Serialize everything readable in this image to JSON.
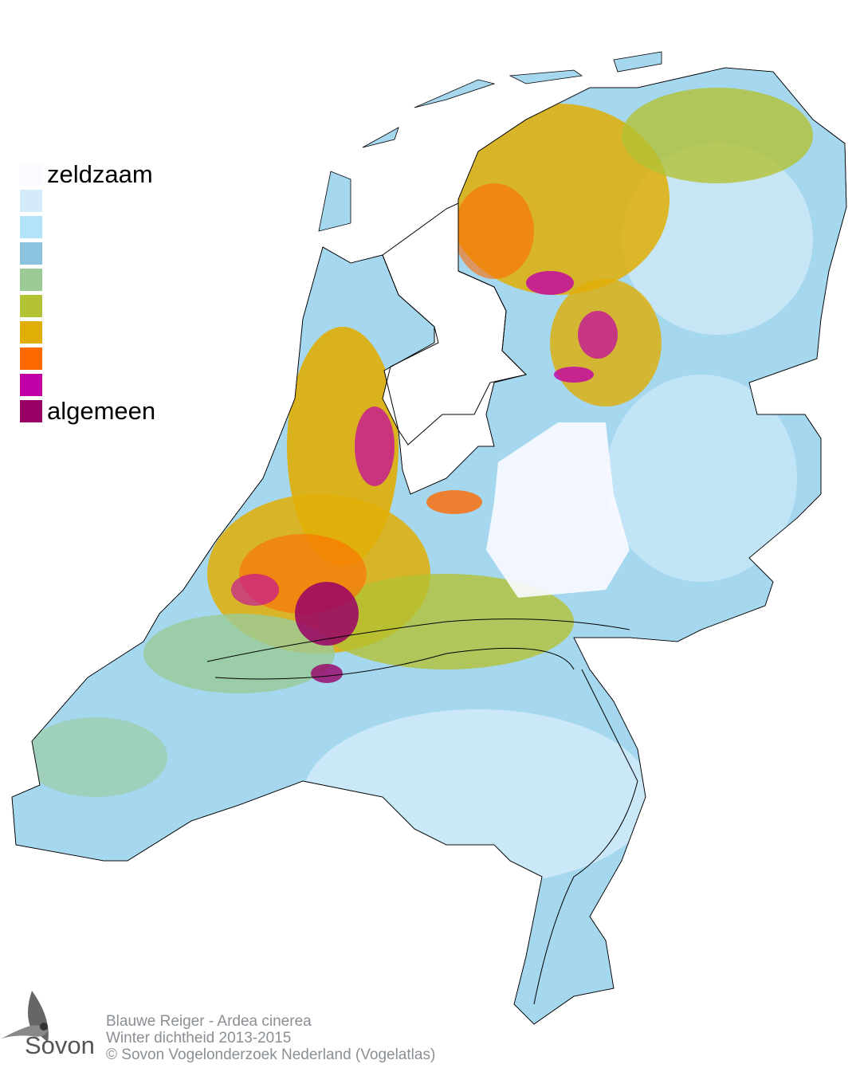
{
  "legend": {
    "items": [
      {
        "label": "zeldzaam",
        "color": "#fbfaff"
      },
      {
        "label": "",
        "color": "#d4ecfa"
      },
      {
        "label": "",
        "color": "#b3e3f8"
      },
      {
        "label": "",
        "color": "#8cc3df"
      },
      {
        "label": "",
        "color": "#9acb97"
      },
      {
        "label": "",
        "color": "#b3c235"
      },
      {
        "label": "",
        "color": "#e0ae06"
      },
      {
        "label": "",
        "color": "#ff6a00"
      },
      {
        "label": "",
        "color": "#c000a6"
      },
      {
        "label": "algemeen",
        "color": "#990066"
      }
    ]
  },
  "footer": {
    "line1": "Blauwe Reiger - Ardea cinerea",
    "line2": "Winter dichtheid 2013-2015",
    "line3": "© Sovon Vogelonderzoek Nederland (Vogelatlas)"
  },
  "logo": {
    "text": "Sovon"
  }
}
